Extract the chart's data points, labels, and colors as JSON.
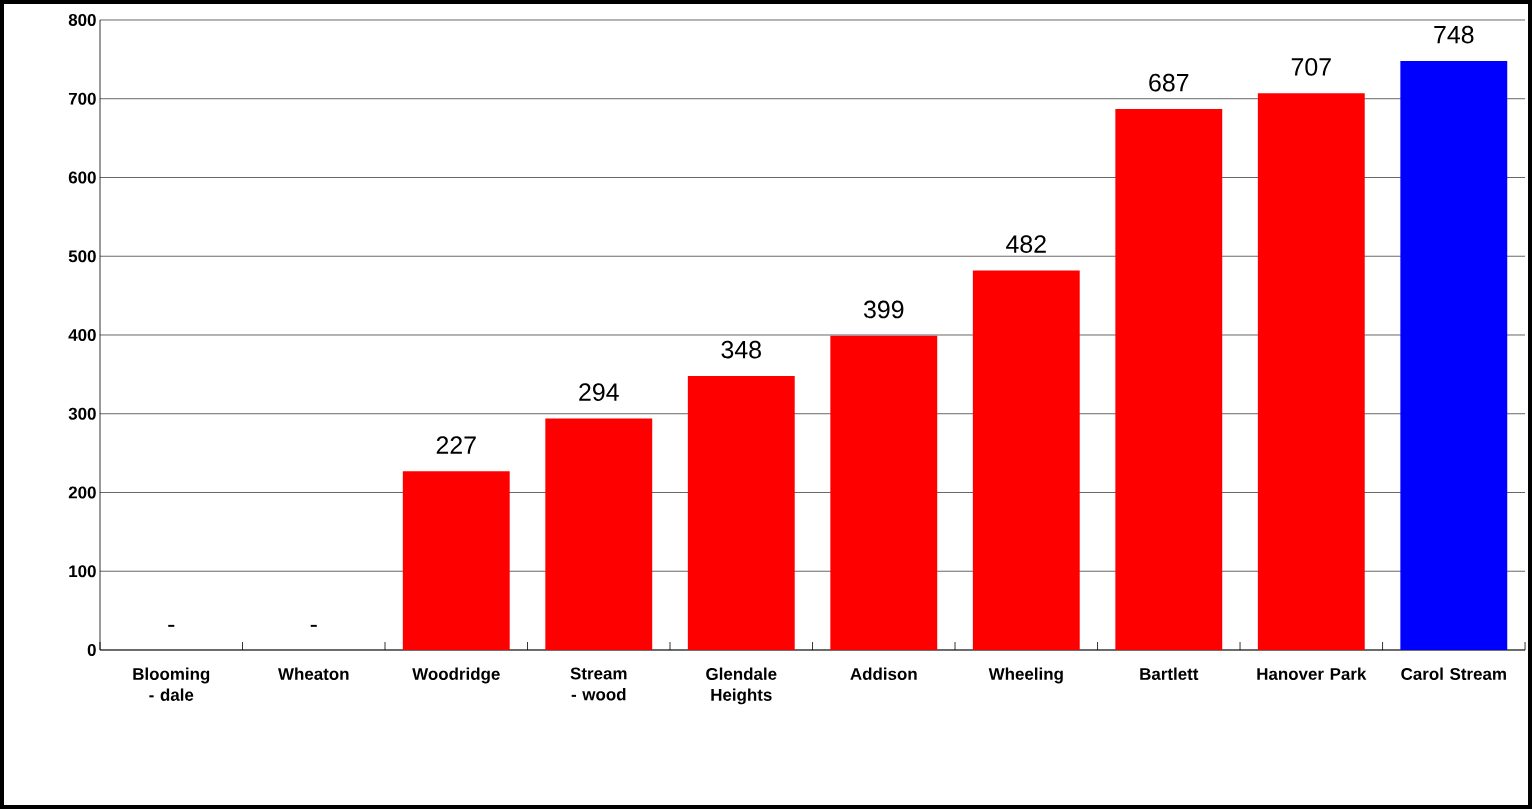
{
  "chart_data": {
    "type": "bar",
    "categories": [
      "Blooming - dale",
      "Wheaton",
      "Woodridge",
      "Stream - wood",
      "Glendale Heights",
      "Addison",
      "Wheeling",
      "Bartlett",
      "Hanover Park",
      "Carol Stream"
    ],
    "values": [
      0,
      0,
      227,
      294,
      348,
      399,
      482,
      687,
      707,
      748
    ],
    "colors": [
      "#ff0000",
      "#ff0000",
      "#ff0000",
      "#ff0000",
      "#ff0000",
      "#ff0000",
      "#ff0000",
      "#ff0000",
      "#ff0000",
      "#0000ff"
    ],
    "value_labels": [
      "-",
      "-",
      "227",
      "294",
      "348",
      "399",
      "482",
      "687",
      "707",
      "748"
    ],
    "ylim": [
      0,
      800
    ],
    "yticks": [
      0,
      100,
      200,
      300,
      400,
      500,
      600,
      700,
      800
    ],
    "grid": "y"
  }
}
